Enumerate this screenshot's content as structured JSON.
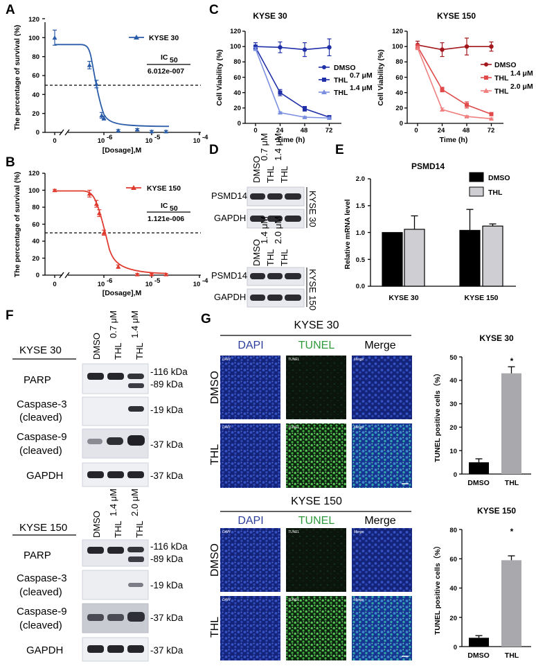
{
  "panel_labels": {
    "A": "A",
    "B": "B",
    "C": "C",
    "D": "D",
    "E": "E",
    "F": "F",
    "G": "G"
  },
  "colors": {
    "blue": "#2a5ca8",
    "red": "#e03a2f",
    "dark_red": "#a3161b",
    "pink": "#f08080",
    "light_blue": "#7a8fe0",
    "navy": "#1e2fa8"
  },
  "chart_data": [
    {
      "id": "A",
      "type": "line",
      "title": "",
      "legend": "KYSE 30",
      "xlabel": "[Dosage],M",
      "ylabel": "The percentage of survival (%)",
      "ylim": [
        0,
        120
      ],
      "yticks": [
        "0",
        "20",
        "40",
        "60",
        "80",
        "100",
        "120"
      ],
      "xticks": [
        "0",
        "10",
        "-6",
        "10",
        "-5",
        "10",
        "-4"
      ],
      "ic50_label": "IC",
      "ic50_sub": "50",
      "ic50_value": "6.012e-007",
      "reference_line": 50,
      "points": [
        {
          "x": "0",
          "y": 100,
          "err": 8
        },
        {
          "x": 5e-07,
          "y": 71,
          "err": 4
        },
        {
          "x": 7e-07,
          "y": 51,
          "err": 4
        },
        {
          "x": 9e-07,
          "y": 18,
          "err": 3
        },
        {
          "x": 1e-06,
          "y": 15,
          "err": 2
        },
        {
          "x": 2e-06,
          "y": 2,
          "err": 1
        },
        {
          "x": 5e-06,
          "y": 3,
          "err": 1
        },
        {
          "x": 1e-05,
          "y": 1,
          "err": 1
        },
        {
          "x": 2e-05,
          "y": 1,
          "err": 1
        }
      ]
    },
    {
      "id": "B",
      "type": "line",
      "title": "",
      "legend": "KYSE 150",
      "xlabel": "[Dosage],M",
      "ylabel": "The percentage of survival (%)",
      "ylim": [
        0,
        120
      ],
      "yticks": [
        "0",
        "20",
        "40",
        "60",
        "80",
        "100",
        "120"
      ],
      "xticks": [
        "0",
        "10",
        "-6",
        "10",
        "-5",
        "10",
        "-4"
      ],
      "ic50_label": "IC",
      "ic50_sub": "50",
      "ic50_value": "1.121e-006",
      "reference_line": 50,
      "points": [
        {
          "x": "0",
          "y": 100,
          "err": 1
        },
        {
          "x": 5e-07,
          "y": 96,
          "err": 4
        },
        {
          "x": 7e-07,
          "y": 84,
          "err": 4
        },
        {
          "x": 8e-07,
          "y": 73,
          "err": 4
        },
        {
          "x": 1e-06,
          "y": 50,
          "err": 3
        },
        {
          "x": 2e-06,
          "y": 10,
          "err": 2
        },
        {
          "x": 5e-06,
          "y": 1,
          "err": 1
        },
        {
          "x": 1e-05,
          "y": 1,
          "err": 1
        },
        {
          "x": 2e-05,
          "y": 1,
          "err": 1
        }
      ]
    },
    {
      "id": "C1",
      "type": "line",
      "title": "KYSE 30",
      "xlabel": "Time (h)",
      "ylabel": "Cell Viability (%)",
      "x": [
        0,
        24,
        48,
        72
      ],
      "ylim": [
        0,
        120
      ],
      "yticks": [
        "0",
        "20",
        "40",
        "60",
        "80",
        "100",
        "120"
      ],
      "series": [
        {
          "name": "DMSO",
          "sup": "",
          "values": [
            100,
            99,
            96,
            99
          ],
          "err": [
            5,
            7,
            9,
            11
          ]
        },
        {
          "name": "THL",
          "sup": "0.7 μM",
          "values": [
            99,
            40,
            19,
            8
          ],
          "err": [
            3,
            4,
            3,
            2
          ]
        },
        {
          "name": "THL",
          "sup": "1.4 μM",
          "values": [
            97,
            14,
            8,
            7
          ],
          "err": [
            2,
            1,
            1,
            1
          ]
        }
      ]
    },
    {
      "id": "C2",
      "type": "line",
      "title": "KYSE 150",
      "xlabel": "Time (h)",
      "ylabel": "Cell Viability (%)",
      "x": [
        0,
        24,
        48,
        72
      ],
      "ylim": [
        0,
        120
      ],
      "yticks": [
        "0",
        "20",
        "40",
        "60",
        "80",
        "100",
        "120"
      ],
      "series": [
        {
          "name": "DMSO",
          "sup": "",
          "values": [
            102,
            96,
            100,
            100
          ],
          "err": [
            5,
            9,
            11,
            6
          ]
        },
        {
          "name": "THL",
          "sup": "1.4 μM",
          "values": [
            100,
            44,
            24,
            12
          ],
          "err": [
            3,
            3,
            4,
            2
          ]
        },
        {
          "name": "THL",
          "sup": "2.0 μM",
          "values": [
            98,
            18,
            9,
            6
          ],
          "err": [
            2,
            2,
            1,
            1
          ]
        }
      ]
    },
    {
      "id": "E",
      "type": "bar",
      "title": "PSMD14",
      "ylabel": "Relative mRNA level",
      "categories": [
        "KYSE 30",
        "KYSE 150"
      ],
      "ylim": [
        0,
        2
      ],
      "yticks": [
        "0.0",
        "0.5",
        "1.0",
        "1.5",
        "2.0"
      ],
      "series": [
        {
          "name": "DMSO",
          "values": [
            1.0,
            1.04
          ],
          "err": [
            0,
            0.39
          ]
        },
        {
          "name": "THL",
          "values": [
            1.06,
            1.12
          ],
          "err": [
            0.25,
            0.04
          ]
        }
      ]
    },
    {
      "id": "G1",
      "type": "bar",
      "title": "KYSE 30",
      "ylabel": "TUNEL positive cells（%）",
      "categories": [
        "DMSO",
        "THL"
      ],
      "values": [
        5,
        43
      ],
      "err": [
        1.5,
        2.8
      ],
      "ylim": [
        0,
        50
      ],
      "yticks": [
        "0",
        "10",
        "20",
        "30",
        "40",
        "50"
      ],
      "significance": "*"
    },
    {
      "id": "G2",
      "type": "bar",
      "title": "KYSE 150",
      "ylabel": "TUNEL positive cells（%）",
      "categories": [
        "DMSO",
        "THL"
      ],
      "values": [
        6,
        59
      ],
      "err": [
        1.5,
        3
      ],
      "ylim": [
        0,
        80
      ],
      "yticks": [
        "0",
        "20",
        "40",
        "60",
        "80"
      ],
      "significance": "*"
    }
  ],
  "panel_D": {
    "kyse30": {
      "lanes": [
        "DMSO",
        "THL",
        "THL"
      ],
      "sups": [
        "",
        "0.7 μM",
        "1.4 μM"
      ],
      "rows": [
        "PSMD14",
        "GAPDH"
      ],
      "cell": "KYSE 30"
    },
    "kyse150": {
      "lanes": [
        "DMSO",
        "THL",
        "THL"
      ],
      "sups": [
        "",
        "1.4 μM",
        "2.0 μM"
      ],
      "rows": [
        "PSMD14",
        "GAPDH"
      ],
      "cell": "KYSE 150"
    }
  },
  "panel_F": {
    "kyse30": {
      "cell": "KYSE 30",
      "lanes": [
        "DMSO",
        "THL",
        "THL"
      ],
      "sups": [
        "",
        "0.7 μM",
        "1.4 μM"
      ],
      "rows": [
        {
          "l1": "PARP",
          "l2": ""
        },
        {
          "l1": "Caspase-3",
          "l2": "(cleaved)"
        },
        {
          "l1": "Caspase-9",
          "l2": "(cleaved)"
        },
        {
          "l1": "GAPDH",
          "l2": ""
        }
      ],
      "markers": [
        "-116 kDa",
        "-89 kDa",
        "-19 kDa",
        "-37 kDa",
        "-37 kDa"
      ]
    },
    "kyse150": {
      "cell": "KYSE 150",
      "lanes": [
        "DMSO",
        "THL",
        "THL"
      ],
      "sups": [
        "",
        "1.4 μM",
        "2.0 μM"
      ],
      "rows": [
        {
          "l1": "PARP",
          "l2": ""
        },
        {
          "l1": "Caspase-3",
          "l2": "(cleaved)"
        },
        {
          "l1": "Caspase-9",
          "l2": "(cleaved)"
        },
        {
          "l1": "GAPDH",
          "l2": ""
        }
      ],
      "markers": [
        "-116 kDa",
        "-89 kDa",
        "-19 kDa",
        "-37 kDa",
        "-37 kDa"
      ]
    }
  },
  "panel_G": {
    "kyse30_title": "KYSE 30",
    "kyse150_title": "KYSE 150",
    "columns": [
      "DAPI",
      "TUNEL",
      "Merge"
    ],
    "rows": [
      "DMSO",
      "THL"
    ],
    "tile_labels": [
      "DAPI",
      "TUNEL",
      "Merge"
    ]
  }
}
